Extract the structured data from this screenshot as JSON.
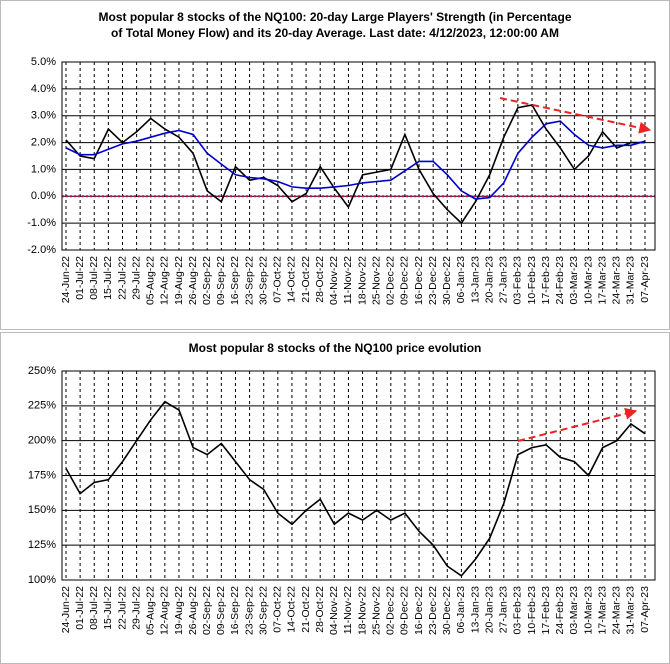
{
  "chart_data": [
    {
      "type": "line",
      "title": [
        "Most popular 8 stocks of the NQ100: 20-day Large Players' Strength (in Percentage",
        "of Total Money Flow) and its 20-day Average. Last date: 4/12/2023, 12:00:00 AM"
      ],
      "categories": [
        "24-Jun-22",
        "01-Jul-22",
        "08-Jul-22",
        "15-Jul-22",
        "22-Jul-22",
        "29-Jul-22",
        "05-Aug-22",
        "12-Aug-22",
        "19-Aug-22",
        "26-Aug-22",
        "02-Sep-22",
        "09-Sep-22",
        "16-Sep-22",
        "23-Sep-22",
        "30-Sep-22",
        "07-Oct-22",
        "14-Oct-22",
        "21-Oct-22",
        "28-Oct-22",
        "04-Nov-22",
        "11-Nov-22",
        "18-Nov-22",
        "25-Nov-22",
        "02-Dec-22",
        "09-Dec-22",
        "16-Dec-22",
        "23-Dec-22",
        "30-Dec-22",
        "06-Jan-23",
        "13-Jan-23",
        "20-Jan-23",
        "27-Jan-23",
        "03-Feb-23",
        "10-Feb-23",
        "17-Feb-23",
        "24-Feb-23",
        "03-Mar-23",
        "10-Mar-23",
        "17-Mar-23",
        "24-Mar-23",
        "31-Mar-23",
        "07-Apr-23"
      ],
      "series": [
        {
          "color": "#000000",
          "values": [
            2.1,
            1.5,
            1.4,
            2.5,
            2.0,
            2.4,
            2.9,
            2.5,
            2.2,
            1.6,
            0.2,
            -0.2,
            1.1,
            0.6,
            0.7,
            0.4,
            -0.2,
            0.1,
            1.1,
            0.3,
            -0.4,
            0.8,
            0.9,
            1.0,
            2.3,
            1.0,
            0.1,
            -0.5,
            -1.0,
            -0.2,
            0.8,
            2.2,
            3.3,
            3.4,
            2.5,
            1.8,
            1.0,
            1.5,
            2.4,
            1.8,
            2.0,
            2.0
          ]
        },
        {
          "color": "#0000cc",
          "values": [
            1.8,
            1.55,
            1.55,
            1.75,
            1.95,
            2.05,
            2.2,
            2.35,
            2.45,
            2.3,
            1.6,
            1.2,
            0.8,
            0.7,
            0.65,
            0.55,
            0.35,
            0.3,
            0.3,
            0.35,
            0.4,
            0.5,
            0.55,
            0.6,
            0.95,
            1.3,
            1.3,
            0.8,
            0.2,
            -0.1,
            -0.05,
            0.5,
            1.6,
            2.2,
            2.7,
            2.8,
            2.3,
            1.9,
            1.8,
            1.9,
            1.9,
            2.05
          ]
        }
      ],
      "ylim": [
        -2,
        5
      ],
      "yticks": [
        {
          "value": -2,
          "label": "-2.0%"
        },
        {
          "value": -1,
          "label": "-1.0%"
        },
        {
          "value": 0,
          "label": "0.0%"
        },
        {
          "value": 1,
          "label": "1.0%"
        },
        {
          "value": 2,
          "label": "2.0%"
        },
        {
          "value": 3,
          "label": "3.0%"
        },
        {
          "value": 4,
          "label": "4.0%"
        },
        {
          "value": 5,
          "label": "5.0%"
        }
      ],
      "grid": true,
      "zero_line_color": "#cc0066"
    },
    {
      "type": "line",
      "title": [
        "Most popular 8 stocks of the NQ100 price evolution"
      ],
      "categories": [
        "24-Jun-22",
        "01-Jul-22",
        "08-Jul-22",
        "15-Jul-22",
        "22-Jul-22",
        "29-Jul-22",
        "05-Aug-22",
        "12-Aug-22",
        "19-Aug-22",
        "26-Aug-22",
        "02-Sep-22",
        "09-Sep-22",
        "16-Sep-22",
        "23-Sep-22",
        "30-Sep-22",
        "07-Oct-22",
        "14-Oct-22",
        "21-Oct-22",
        "28-Oct-22",
        "04-Nov-22",
        "11-Nov-22",
        "18-Nov-22",
        "25-Nov-22",
        "02-Dec-22",
        "09-Dec-22",
        "16-Dec-22",
        "23-Dec-22",
        "30-Dec-22",
        "06-Jan-23",
        "13-Jan-23",
        "20-Jan-23",
        "27-Jan-23",
        "03-Feb-23",
        "10-Feb-23",
        "17-Feb-23",
        "24-Feb-23",
        "03-Mar-23",
        "10-Mar-23",
        "17-Mar-23",
        "24-Mar-23",
        "31-Mar-23",
        "07-Apr-23"
      ],
      "series": [
        {
          "color": "#000000",
          "values": [
            180,
            162,
            170,
            172,
            185,
            200,
            215,
            228,
            222,
            195,
            190,
            198,
            185,
            172,
            165,
            148,
            140,
            150,
            158,
            140,
            148,
            143,
            150,
            143,
            148,
            135,
            125,
            110,
            103,
            115,
            130,
            155,
            190,
            195,
            197,
            188,
            185,
            175,
            195,
            200,
            212,
            205
          ]
        }
      ],
      "ylim": [
        100,
        250
      ],
      "yticks": [
        {
          "value": 100,
          "label": "100%"
        },
        {
          "value": 125,
          "label": "125%"
        },
        {
          "value": 150,
          "label": "150%"
        },
        {
          "value": 175,
          "label": "175%"
        },
        {
          "value": 200,
          "label": "200%"
        },
        {
          "value": 225,
          "label": "225%"
        },
        {
          "value": 250,
          "label": "250%"
        }
      ],
      "grid": true
    }
  ]
}
